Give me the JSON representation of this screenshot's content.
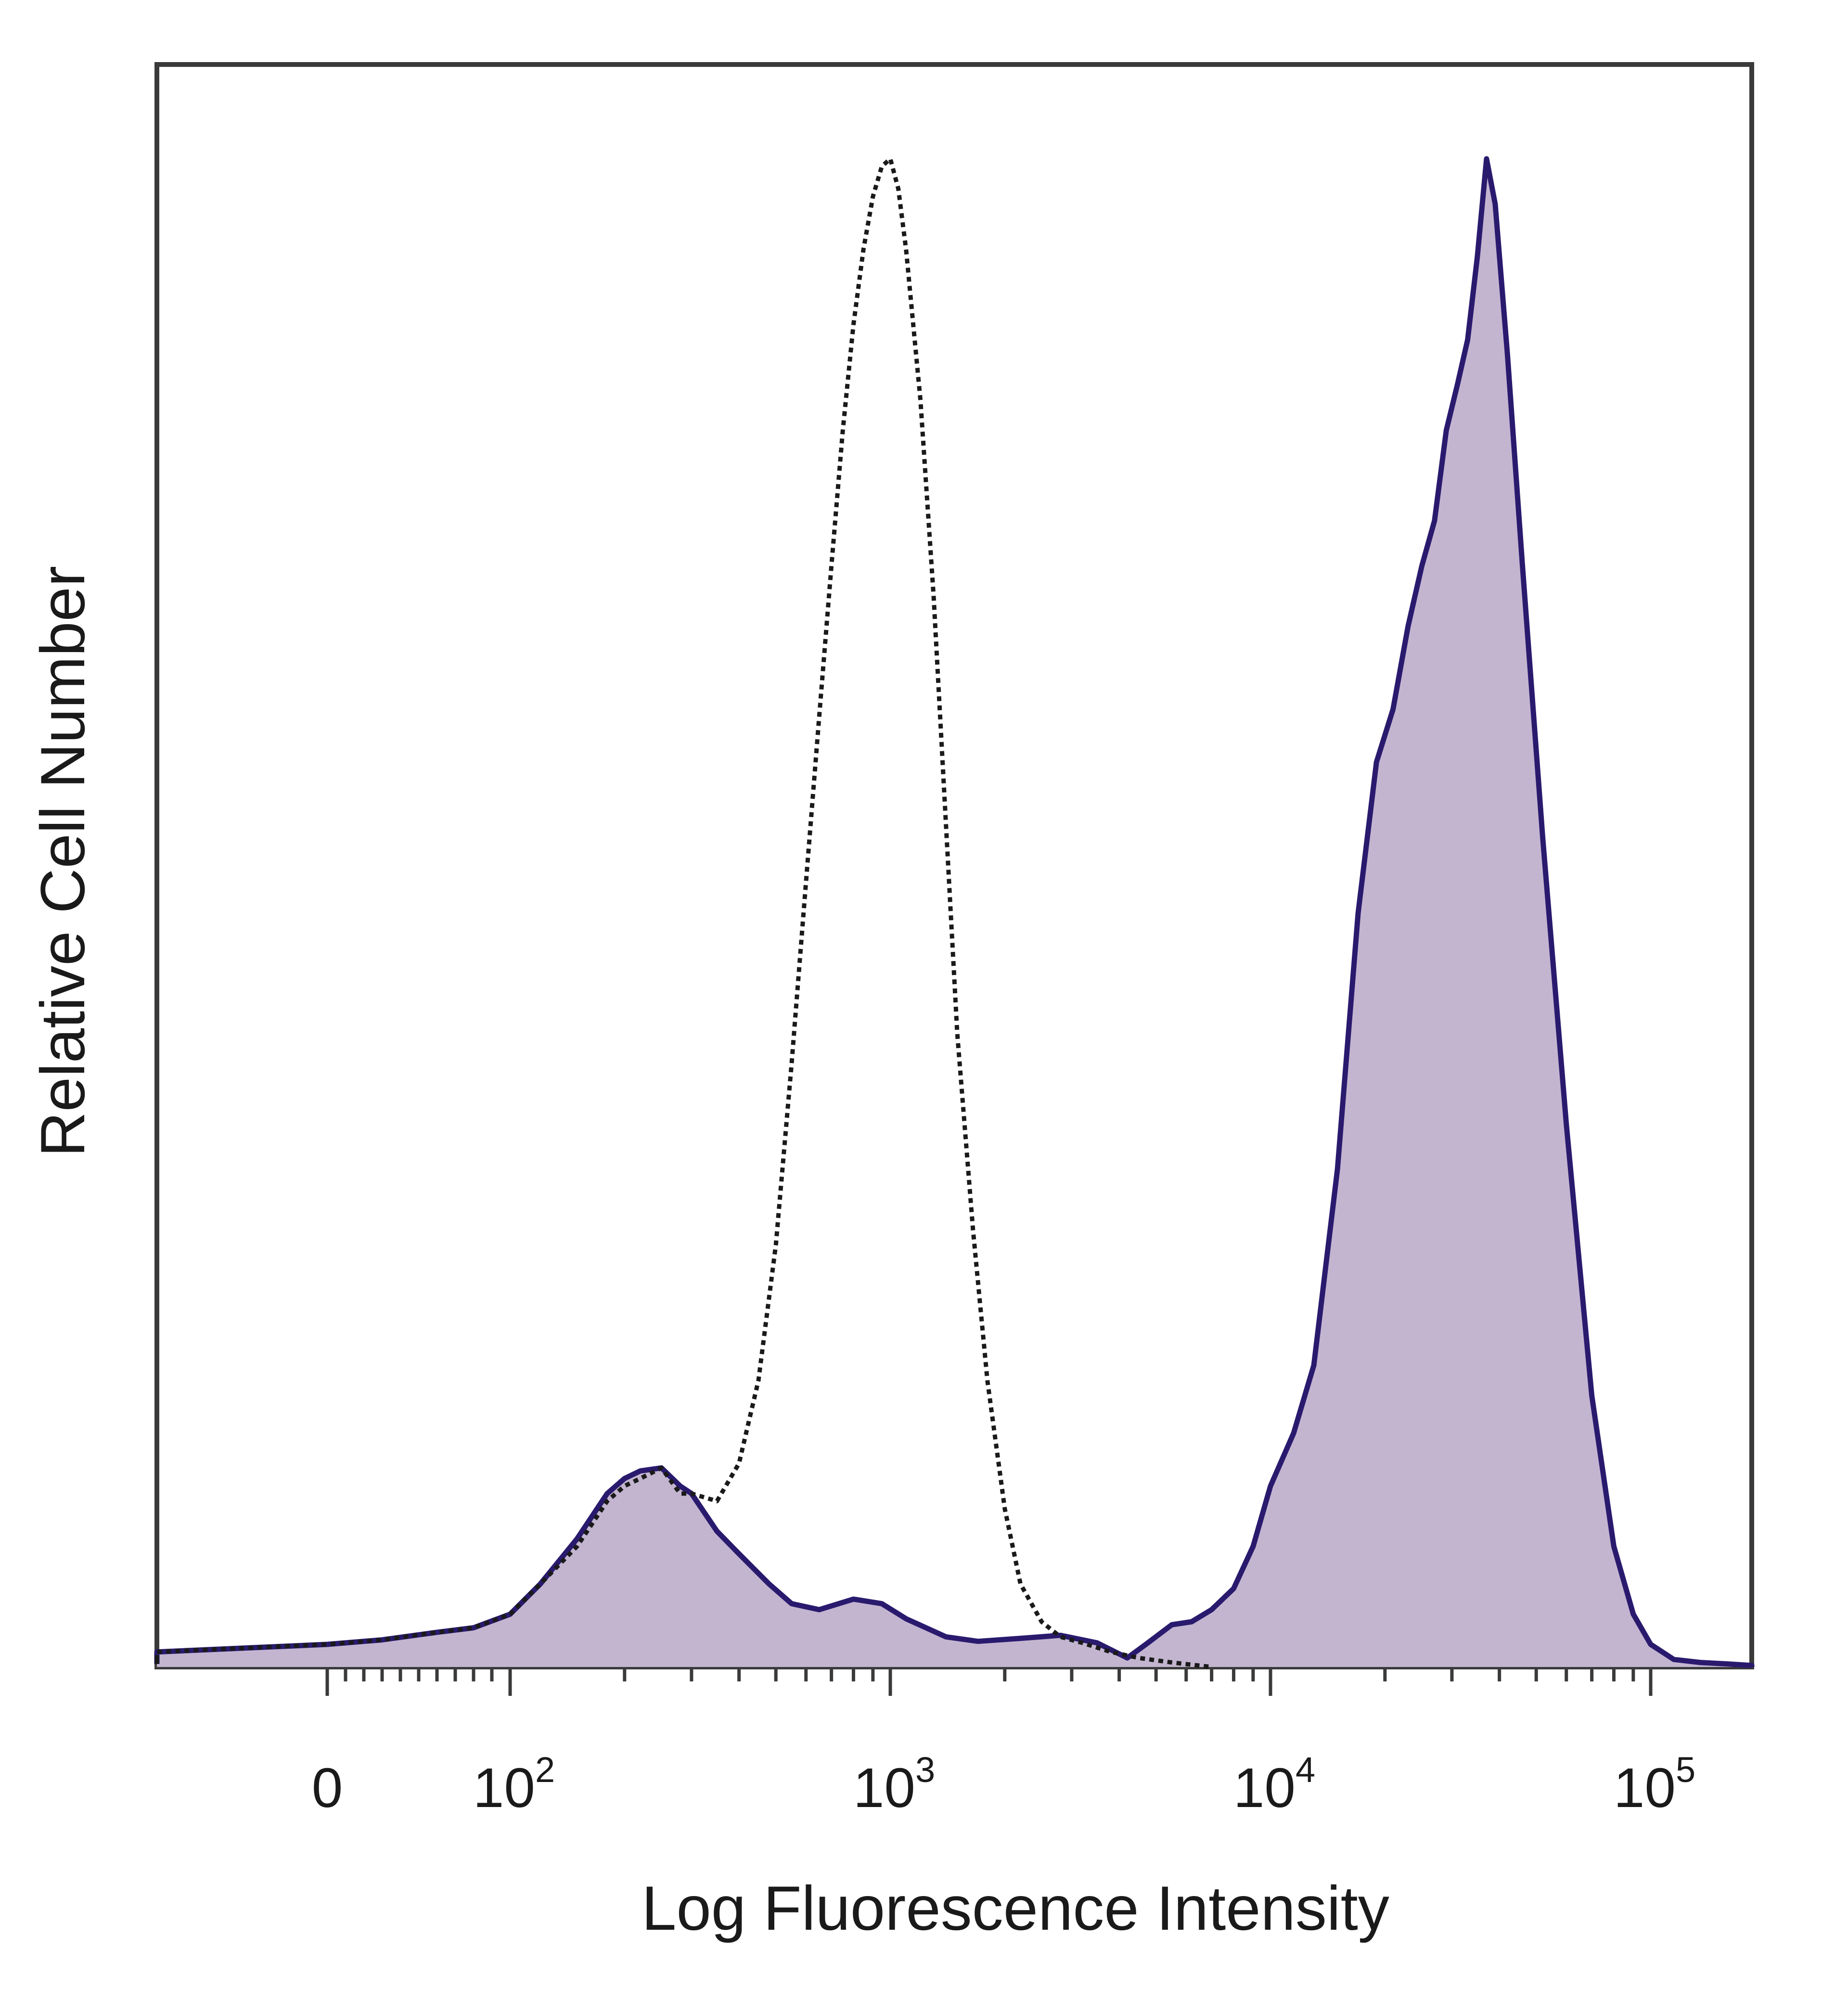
{
  "chart_data": {
    "type": "area",
    "title": "",
    "xlabel": "Log Fluorescence Intensity",
    "ylabel": "Relative Cell Number",
    "x_scale": "biexponential",
    "xlim": [
      -800,
      250000
    ],
    "ylim": [
      0,
      100
    ],
    "grid": false,
    "legend": "none",
    "x_ticks": [
      {
        "value": 0,
        "base": "0",
        "exp": ""
      },
      {
        "value": 100,
        "base": "10",
        "exp": "2"
      },
      {
        "value": 1000,
        "base": "10",
        "exp": "3"
      },
      {
        "value": 10000,
        "base": "10",
        "exp": "4"
      },
      {
        "value": 100000,
        "base": "10",
        "exp": "5"
      }
    ],
    "colors": {
      "fill": "#c3b5d0",
      "stained_line": "#2a1a6e",
      "control_line": "#1a1a1a",
      "frame": "#3a3a3a"
    },
    "series": [
      {
        "style": "filled-solid",
        "x": [
          -800,
          -500,
          -300,
          -100,
          0,
          30,
          60,
          80,
          100,
          120,
          150,
          180,
          200,
          220,
          250,
          280,
          300,
          350,
          400,
          480,
          550,
          650,
          800,
          950,
          1100,
          1400,
          1700,
          2200,
          2800,
          3500,
          4200,
          4700,
          5500,
          6200,
          7000,
          8000,
          9000,
          10000,
          11500,
          13000,
          15000,
          17000,
          19000,
          21000,
          23000,
          25000,
          27000,
          29000,
          31000,
          33000,
          35000,
          37000,
          39000,
          42000,
          46000,
          52000,
          60000,
          70000,
          80000,
          90000,
          100000,
          115000,
          135000,
          160000,
          200000,
          250000
        ],
        "values": [
          0.2,
          0.8,
          0.6,
          1.0,
          1.5,
          1.8,
          2.3,
          2.6,
          3.5,
          5.5,
          8.5,
          11.5,
          12.5,
          13.0,
          13.2,
          12.0,
          11.5,
          9.0,
          7.5,
          5.5,
          4.2,
          3.8,
          4.5,
          4.2,
          3.2,
          2.0,
          1.7,
          1.9,
          2.1,
          1.6,
          0.6,
          1.5,
          2.8,
          3.0,
          3.8,
          5.2,
          8.0,
          12.0,
          15.5,
          20.0,
          33.0,
          50.0,
          60.0,
          63.5,
          69.0,
          73.0,
          76.0,
          82.0,
          85.0,
          88.0,
          93.5,
          100.0,
          97.0,
          87.0,
          73.0,
          55.0,
          36.0,
          18.0,
          8.0,
          3.5,
          1.5,
          0.5,
          0.3,
          0.2,
          0.1,
          0.0
        ]
      },
      {
        "style": "dotted-line",
        "x": [
          -800,
          -500,
          -300,
          -100,
          0,
          30,
          60,
          80,
          100,
          120,
          150,
          180,
          200,
          220,
          250,
          280,
          300,
          350,
          400,
          450,
          500,
          550,
          600,
          650,
          700,
          750,
          800,
          850,
          900,
          950,
          1000,
          1050,
          1100,
          1200,
          1300,
          1400,
          1500,
          1650,
          1800,
          2000,
          2200,
          2500,
          2800,
          3200,
          3800,
          4500,
          5500,
          7000
        ],
        "values": [
          0.2,
          0.8,
          0.6,
          1.0,
          1.5,
          1.8,
          2.3,
          2.6,
          3.5,
          5.5,
          8.0,
          11.0,
          12.0,
          12.5,
          13.2,
          11.5,
          11.5,
          11.0,
          13.5,
          19.0,
          28.0,
          40.0,
          52.0,
          63.0,
          73.0,
          82.0,
          89.0,
          94.0,
          97.5,
          99.5,
          100.0,
          98.0,
          94.0,
          84.0,
          71.0,
          56.0,
          42.0,
          29.0,
          19.0,
          10.5,
          5.5,
          3.0,
          2.0,
          1.6,
          1.0,
          0.6,
          0.3,
          0.0
        ]
      }
    ]
  }
}
